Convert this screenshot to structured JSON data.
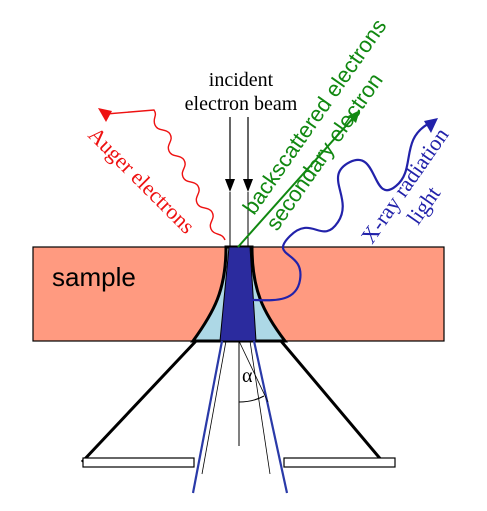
{
  "labels": {
    "incident_line1": "incident",
    "incident_line2": "electron beam",
    "auger": "Auger electrons",
    "backscattered": "backscattered electrons",
    "secondary": "secondary electron",
    "xray_line1": "X-ray radiation",
    "xray_line2": "light",
    "sample": "sample",
    "alpha": "α"
  },
  "colors": {
    "sample_fill": "#ff9a80",
    "interaction_fill": "#add8e6",
    "core_fill": "#2b2b9e",
    "auger": "#ee1111",
    "secondary": "#118811",
    "xray": "#2222aa",
    "beam": "#000000",
    "cone_line": "#2a3aa8"
  },
  "icons": {
    "auger_wave": "squiggle-arrow-icon",
    "xray_wave": "wave-arrow-icon"
  }
}
